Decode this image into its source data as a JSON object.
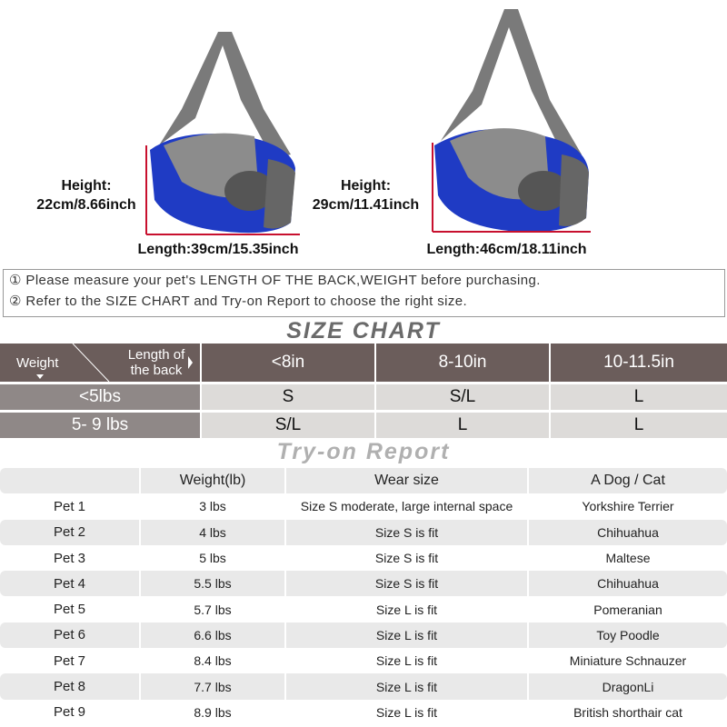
{
  "bags": [
    {
      "height_label": "Height:",
      "height_value": "22cm/8.66inch",
      "length": "Length:39cm/15.35inch"
    },
    {
      "height_label": "Height:",
      "height_value": "29cm/11.41inch",
      "length": "Length:46cm/18.11inch"
    }
  ],
  "colors": {
    "bag_blue": "#1f3bc4",
    "bag_gray": "#707070",
    "measure_red": "#c8102e",
    "header_brown": "#6b5d5b"
  },
  "instructions": [
    "① Please measure your pet's LENGTH OF THE BACK,WEIGHT before purchasing.",
    "② Refer to the SIZE CHART and Try-on Report to choose the right size."
  ],
  "size_chart": {
    "title": "SIZE CHART",
    "corner_weight": "Weight",
    "corner_length": "Length of the back",
    "columns": [
      "<8in",
      "8-10in",
      "10-11.5in"
    ],
    "rows": [
      {
        "weight": "<5lbs",
        "sizes": [
          "S",
          "S/L",
          "L"
        ]
      },
      {
        "weight": "5- 9 lbs",
        "sizes": [
          "S/L",
          "L",
          "L"
        ]
      }
    ]
  },
  "report": {
    "title": "Try-on Report",
    "headers": [
      "",
      "Weight(lb)",
      "Wear size",
      "A Dog / Cat"
    ],
    "rows": [
      [
        "Pet 1",
        "3 lbs",
        "Size S moderate, large internal space",
        "Yorkshire Terrier"
      ],
      [
        "Pet 2",
        "4 lbs",
        "Size S is fit",
        "Chihuahua"
      ],
      [
        "Pet 3",
        "5 lbs",
        "Size S is fit",
        "Maltese"
      ],
      [
        "Pet 4",
        "5.5 lbs",
        "Size S is fit",
        "Chihuahua"
      ],
      [
        "Pet 5",
        "5.7 lbs",
        "Size L is fit",
        "Pomeranian"
      ],
      [
        "Pet 6",
        "6.6 lbs",
        "Size L is fit",
        "Toy Poodle"
      ],
      [
        "Pet 7",
        "8.4 lbs",
        "Size L is fit",
        "Miniature Schnauzer"
      ],
      [
        "Pet 8",
        "7.7 lbs",
        "Size L is fit",
        "DragonLi"
      ],
      [
        "Pet 9",
        "8.9 lbs",
        "Size L is fit",
        "British shorthair cat"
      ]
    ]
  }
}
